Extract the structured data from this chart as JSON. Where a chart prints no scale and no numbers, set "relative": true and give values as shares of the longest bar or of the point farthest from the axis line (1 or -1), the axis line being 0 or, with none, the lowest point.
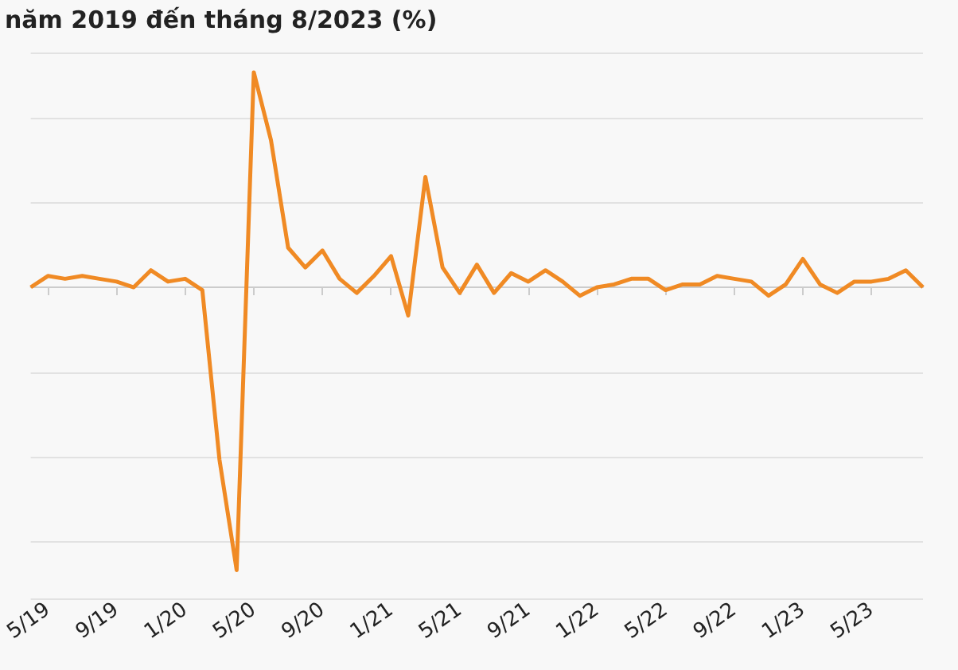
{
  "chart_data": {
    "type": "line",
    "title": "năm 2019 đến tháng 8/2023 (%)",
    "categories": [
      null,
      "5/19",
      null,
      null,
      null,
      "9/19",
      null,
      null,
      null,
      "1/20",
      null,
      null,
      null,
      "5/20",
      null,
      null,
      null,
      "9/20",
      null,
      null,
      null,
      "1/21",
      null,
      null,
      null,
      "5/21",
      null,
      null,
      null,
      "9/21",
      null,
      null,
      null,
      "1/22",
      null,
      null,
      null,
      "5/22",
      null,
      null,
      null,
      "9/22",
      null,
      null,
      null,
      "1/23",
      null,
      null,
      null,
      "5/23",
      null,
      null,
      null
    ],
    "series": [
      {
        "color": "#f08a24",
        "values": [
          0,
          0.04,
          0.03,
          0.04,
          0.03,
          0.02,
          0,
          0.06,
          0.02,
          0.03,
          -0.01,
          -0.61,
          -1,
          0.76,
          0.52,
          0.14,
          0.07,
          0.13,
          0.03,
          -0.02,
          0.04,
          0.11,
          -0.1,
          0.39,
          0.07,
          -0.02,
          0.08,
          -0.02,
          0.05,
          0.02,
          0.06,
          0.02,
          -0.03,
          0,
          0.01,
          0.03,
          0.03,
          -0.01,
          0.01,
          0.01,
          0.04,
          0.03,
          0.02,
          -0.03,
          0.01,
          0.1,
          0.01,
          -0.02,
          0.02,
          0.02,
          0.03,
          0.06,
          0
        ]
      }
    ],
    "relative": true,
    "grid": "y",
    "marker": "none",
    "line_style": "solid"
  }
}
